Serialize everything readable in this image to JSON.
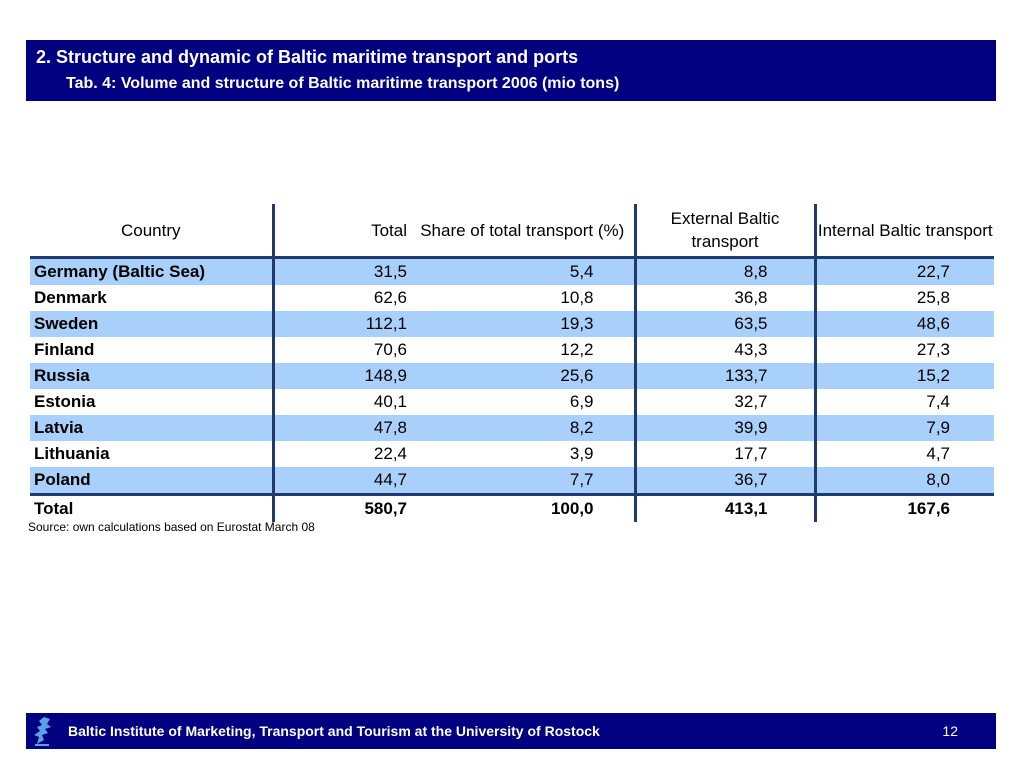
{
  "header": {
    "title": "2. Structure and dynamic of Baltic maritime transport and ports",
    "subtitle": "Tab. 4: Volume and structure of Baltic maritime transport 2006 (mio tons)"
  },
  "table": {
    "columns": [
      "Country",
      "Total",
      "Share of total transport (%)",
      "External Baltic transport",
      "Internal Baltic transport"
    ],
    "rows": [
      [
        "Germany (Baltic Sea)",
        "31,5",
        "5,4",
        "8,8",
        "22,7"
      ],
      [
        "Denmark",
        "62,6",
        "10,8",
        "36,8",
        "25,8"
      ],
      [
        "Sweden",
        "112,1",
        "19,3",
        "63,5",
        "48,6"
      ],
      [
        "Finland",
        "70,6",
        "12,2",
        "43,3",
        "27,3"
      ],
      [
        "Russia",
        "148,9",
        "25,6",
        "133,7",
        "15,2"
      ],
      [
        "Estonia",
        "40,1",
        "6,9",
        "32,7",
        "7,4"
      ],
      [
        "Latvia",
        "47,8",
        "8,2",
        "39,9",
        "7,9"
      ],
      [
        "Lithuania",
        "22,4",
        "3,9",
        "17,7",
        "4,7"
      ],
      [
        "Poland",
        "44,7",
        "7,7",
        "36,7",
        "8,0"
      ]
    ],
    "total": [
      "Total",
      "580,7",
      "100,0",
      "413,1",
      "167,6"
    ],
    "shade_color": "#a9d0fb",
    "rule_color": "#1f3a6e"
  },
  "source": "Source: own calculations based on Eurostat March 08",
  "footer": {
    "text": "Baltic Institute of Marketing, Transport and Tourism at the University of Rostock",
    "page": "12",
    "logo_icon": "baltic-institute-logo-icon"
  },
  "colors": {
    "navy": "#000080"
  }
}
